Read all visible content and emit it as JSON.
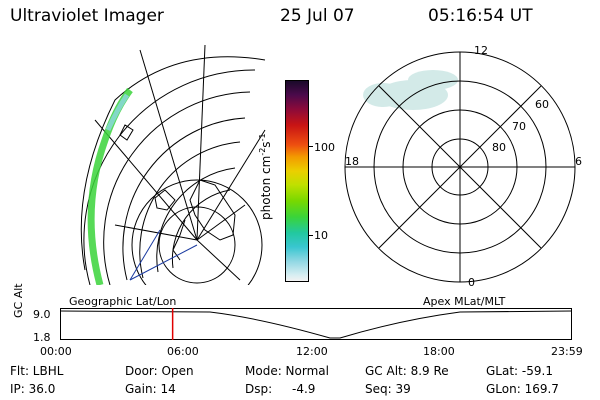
{
  "header": {
    "title": "Ultraviolet Imager",
    "date": "25 Jul 07",
    "time": "05:16:54 UT"
  },
  "colorbar": {
    "ticks": [
      "100",
      "10"
    ],
    "label": "photon cm",
    "label_exp1": "-2",
    "label_mid": "s",
    "label_exp2": "-1"
  },
  "left_panel": {
    "label": "Geographic Lat/Lon"
  },
  "polar_panel": {
    "label": "Apex MLat/MLT",
    "mlt_labels": {
      "top": "12",
      "left": "18",
      "right": "6",
      "bottom": "0"
    },
    "lat_labels": [
      "60",
      "70",
      "80"
    ]
  },
  "orbit_plot": {
    "y_label": "GC Alt",
    "y_ticks": [
      "9.0",
      "1.8"
    ],
    "x_ticks": [
      "00:00",
      "06:00",
      "12:00",
      "18:00",
      "23:59"
    ],
    "marker_time_hours": 5.28
  },
  "info": {
    "row1": {
      "flt": "Flt: LBHL",
      "door": "Door: Open",
      "mode": "Mode: Normal",
      "gcalt": "GC Alt: 8.9 Re",
      "glat": "GLat: -59.1"
    },
    "row2": {
      "ip": "IP: 36.0",
      "gain": "Gain: 14",
      "dsp_label": "Dsp:",
      "dsp_value": "-4.9",
      "seq": "Seq: 39",
      "glon": "GLon: 169.7"
    }
  },
  "colors": {
    "marker": "#e00000",
    "aurora": "#3ad43a",
    "aurora_faint": "#8fd7e3"
  }
}
